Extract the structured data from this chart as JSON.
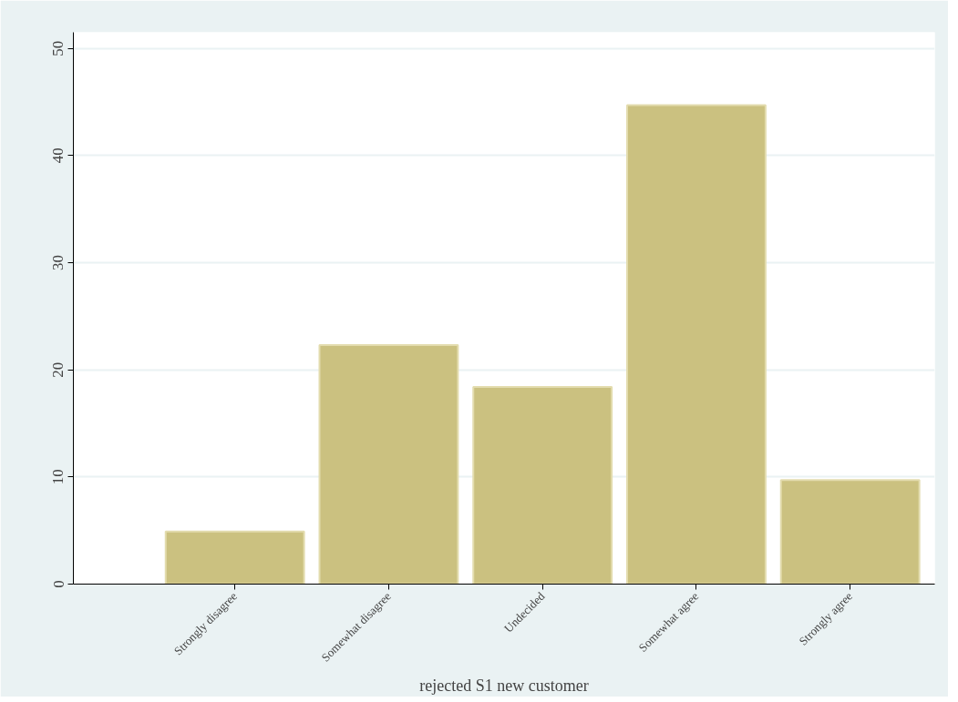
{
  "chart_data": {
    "type": "bar",
    "xlabel": "rejected S1 new customer",
    "categories": [
      null,
      "Strongly disagree",
      "Somewhat disagree",
      "Undecided",
      "Somewhat agree",
      "Strongly agree"
    ],
    "values": [
      null,
      4.9,
      22.3,
      18.4,
      44.7,
      9.7
    ],
    "color": "#cbc180",
    "ylim": [
      0,
      51.5
    ],
    "yticks": [
      0,
      10,
      20,
      30,
      40,
      50
    ],
    "grid": "y"
  }
}
